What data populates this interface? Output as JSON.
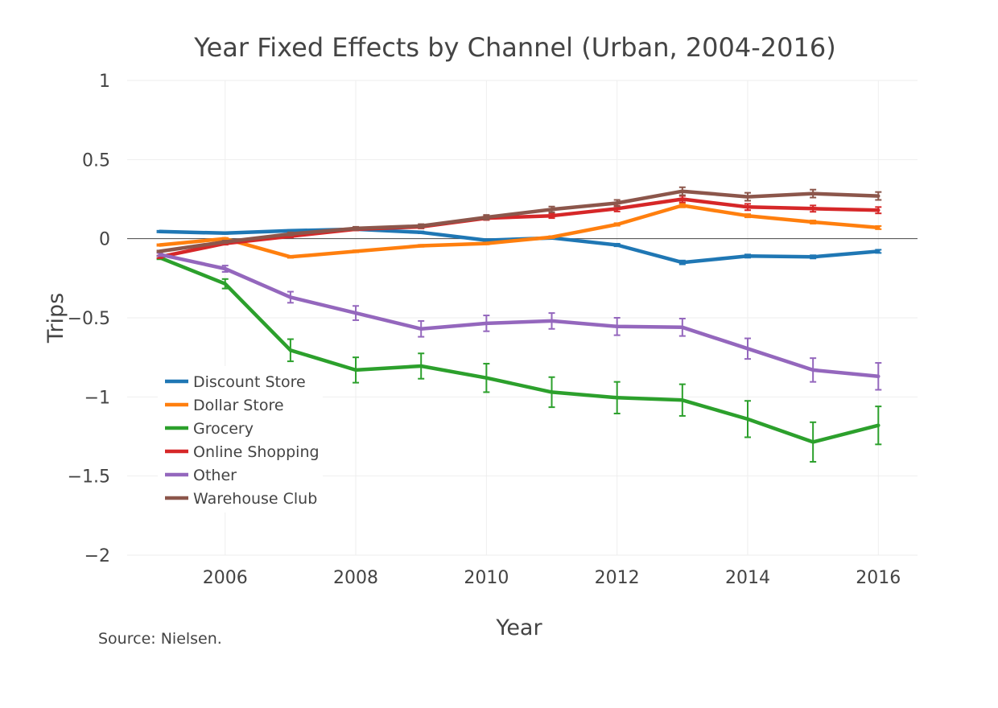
{
  "chart_data": {
    "type": "line",
    "title": "Year Fixed Effects by Channel (Urban, 2004-2016)",
    "xlabel": "Year",
    "ylabel": "Trips",
    "source": "Source: Nielsen.",
    "xlim": [
      2004.5,
      2016.6
    ],
    "ylim": [
      -2,
      1
    ],
    "x_ticks": [
      2006,
      2008,
      2010,
      2012,
      2014,
      2016
    ],
    "x_tick_labels": [
      "2006",
      "2008",
      "2010",
      "2012",
      "2014",
      "2016"
    ],
    "y_ticks": [
      1,
      0.5,
      0,
      -0.5,
      -1,
      -1.5,
      -2
    ],
    "y_tick_labels": [
      "1",
      "0.5",
      "0",
      "−0.5",
      "−1",
      "−1.5",
      "−2"
    ],
    "grid": true,
    "legend_position": "bottom-left",
    "x": [
      2005,
      2006,
      2007,
      2008,
      2009,
      2010,
      2011,
      2012,
      2013,
      2014,
      2015,
      2016
    ],
    "series": [
      {
        "name": "Discount Store",
        "color": "#1f77b4",
        "values": [
          0.045,
          0.035,
          0.05,
          0.06,
          0.04,
          -0.01,
          0.005,
          -0.04,
          -0.15,
          -0.11,
          -0.115,
          -0.08
        ],
        "errors": [
          0.005,
          0.005,
          0.005,
          0.005,
          0.006,
          0.007,
          0.007,
          0.008,
          0.012,
          0.01,
          0.01,
          0.01
        ]
      },
      {
        "name": "Dollar Store",
        "color": "#ff7f0e",
        "values": [
          -0.04,
          0.0,
          -0.115,
          -0.08,
          -0.045,
          -0.03,
          0.01,
          0.09,
          0.21,
          0.145,
          0.105,
          0.07
        ],
        "errors": [
          0.005,
          0.005,
          0.006,
          0.006,
          0.006,
          0.006,
          0.006,
          0.008,
          0.012,
          0.01,
          0.01,
          0.01
        ]
      },
      {
        "name": "Grocery",
        "color": "#2ca02c",
        "values": [
          -0.12,
          -0.285,
          -0.705,
          -0.83,
          -0.805,
          -0.88,
          -0.97,
          -1.005,
          -1.02,
          -1.14,
          -1.285,
          -1.18
        ],
        "errors": [
          0.01,
          0.03,
          0.07,
          0.08,
          0.08,
          0.09,
          0.095,
          0.1,
          0.1,
          0.115,
          0.125,
          0.12
        ]
      },
      {
        "name": "Online Shopping",
        "color": "#d62728",
        "values": [
          -0.115,
          -0.03,
          0.015,
          0.06,
          0.075,
          0.13,
          0.145,
          0.19,
          0.25,
          0.2,
          0.19,
          0.18
        ],
        "errors": [
          0.008,
          0.008,
          0.008,
          0.008,
          0.01,
          0.012,
          0.015,
          0.018,
          0.02,
          0.02,
          0.02,
          0.02
        ]
      },
      {
        "name": "Other",
        "color": "#9467bd",
        "values": [
          -0.1,
          -0.19,
          -0.37,
          -0.47,
          -0.57,
          -0.535,
          -0.52,
          -0.555,
          -0.56,
          -0.695,
          -0.83,
          -0.87
        ],
        "errors": [
          0.01,
          0.02,
          0.035,
          0.045,
          0.05,
          0.05,
          0.05,
          0.055,
          0.055,
          0.065,
          0.075,
          0.085
        ]
      },
      {
        "name": "Warehouse Club",
        "color": "#8c564b",
        "values": [
          -0.08,
          -0.02,
          0.03,
          0.065,
          0.08,
          0.135,
          0.185,
          0.225,
          0.3,
          0.265,
          0.285,
          0.27
        ],
        "errors": [
          0.005,
          0.008,
          0.01,
          0.01,
          0.012,
          0.015,
          0.018,
          0.02,
          0.025,
          0.025,
          0.025,
          0.025
        ]
      }
    ]
  }
}
